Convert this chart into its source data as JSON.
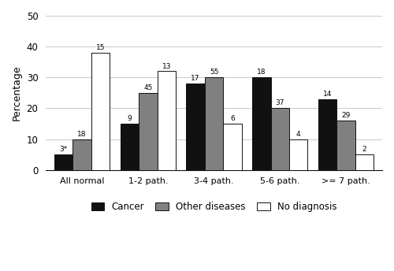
{
  "categories": [
    "All normal",
    "1-2 path.",
    "3-4 path.",
    "5-6 path.",
    ">= 7 path."
  ],
  "series": {
    "Cancer": [
      5,
      15,
      28,
      30,
      23
    ],
    "Other diseases": [
      10,
      25,
      30,
      20,
      16
    ],
    "No diagnosis": [
      38,
      32,
      15,
      10,
      5
    ]
  },
  "labels": {
    "Cancer": [
      "3*",
      "9",
      "17",
      "18",
      "14"
    ],
    "Other diseases": [
      "18",
      "45",
      "55",
      "37",
      "29"
    ],
    "No diagnosis": [
      "15",
      "13",
      "6",
      "4",
      "2"
    ]
  },
  "colors": {
    "Cancer": "#111111",
    "Other diseases": "#808080",
    "No diagnosis": "#ffffff"
  },
  "bar_edgecolor": "#111111",
  "ylabel": "Percentage",
  "ylim": [
    0,
    50
  ],
  "yticks": [
    0,
    10,
    20,
    30,
    40,
    50
  ],
  "legend_order": [
    "Cancer",
    "Other diseases",
    "No diagnosis"
  ],
  "bar_width": 0.28,
  "background_color": "#ffffff",
  "grid_color": "#c8c8c8"
}
